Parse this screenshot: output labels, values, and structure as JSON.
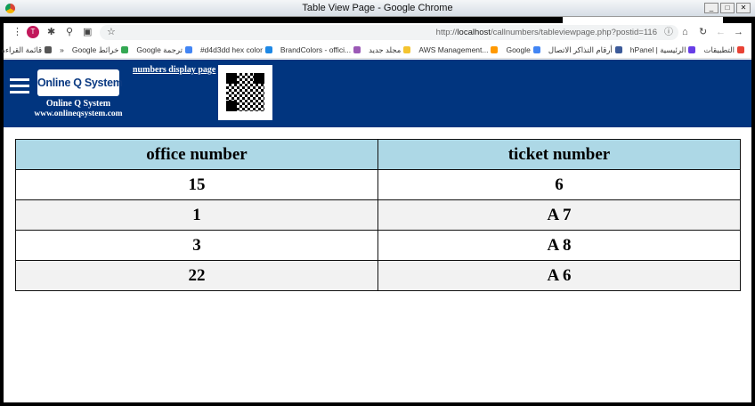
{
  "window": {
    "title": "Table View Page - Google Chrome"
  },
  "browser": {
    "url_prefix": "http://",
    "url_host": "localhost",
    "url_path": "/callnumbers/tableviewpage.php?postid=116",
    "profile_initial": "T",
    "bookmarks": [
      {
        "label": "التطبيقات",
        "color": "#e94235"
      },
      {
        "label": "hPanel | الرئيسية",
        "color": "#673de6"
      },
      {
        "label": "أرقام التذاكر الاتصال",
        "color": "#3c5a99"
      },
      {
        "label": "Google",
        "color": "#4285f4"
      },
      {
        "label": "AWS Management...",
        "color": "#ff9900"
      },
      {
        "label": "مجلد جديد",
        "color": "#f4c430"
      },
      {
        "label": "BrandColors - offici...",
        "color": "#9b59b6"
      },
      {
        "label": "#d4d3dd hex color",
        "color": "#1e88e5"
      },
      {
        "label": "Google ترجمة",
        "color": "#4285f4"
      },
      {
        "label": "Google خرائط",
        "color": "#34a853"
      },
      {
        "label": "»",
        "color": ""
      },
      {
        "label": "قائمة القراءة",
        "color": "#555555"
      }
    ]
  },
  "header": {
    "logo_text": "Online Q System",
    "brand_name": "Online Q System",
    "website": "www.onlineqsystem.com",
    "nav_link": "numbers display page",
    "bg_color": "#01357f"
  },
  "table": {
    "headers": [
      "office number",
      "ticket number"
    ],
    "rows": [
      [
        "15",
        "6"
      ],
      [
        "1",
        "A 7"
      ],
      [
        "3",
        "A 8"
      ],
      [
        "22",
        "A 6"
      ]
    ]
  }
}
